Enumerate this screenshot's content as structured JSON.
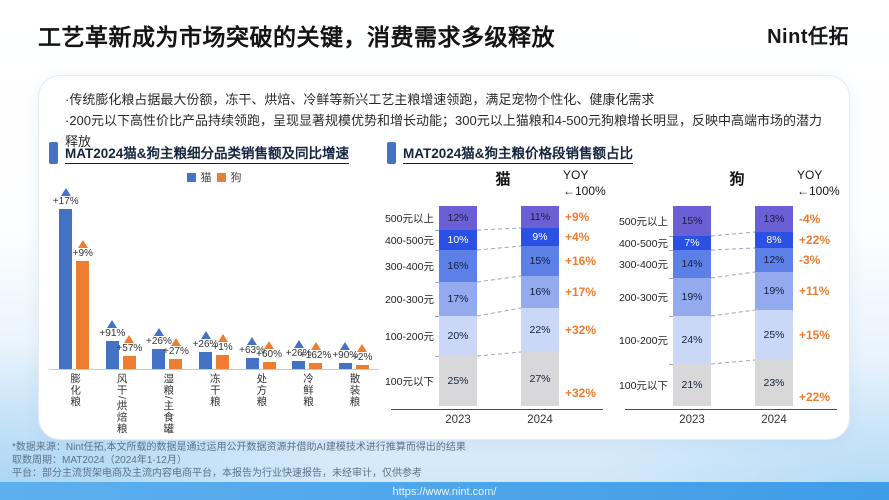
{
  "header": {
    "title": "工艺革新成为市场突破的关键，消费需求多级释放",
    "logo": "Nint任拓"
  },
  "bullets": [
    "·传统膨化粮占据最大份额，冻干、烘焙、冷鲜等新兴工艺主粮增速领跑，满足宠物个性化、健康化需求",
    "·200元以下高性价比产品持续领跑，呈现显著规模优势和增长动能；300元以上猫粮和4-500元狗粮增长明显，反映中高端市场的潜力释放"
  ],
  "chart_data": [
    {
      "type": "bar",
      "title": "MAT2024猫&狗主粮细分品类销售额及同比增速",
      "legend_position": "top",
      "categories": [
        "膨化粮",
        "风干/烘焙粮",
        "湿粮/主食罐",
        "冻干粮",
        "处方粮",
        "冷鲜粮",
        "散装粮"
      ],
      "series": [
        {
          "name": "猫",
          "color": "#4472C4",
          "relative_sales": [
            160,
            28,
            20,
            17,
            11,
            8,
            6
          ],
          "growth": [
            "+17%",
            "+91%",
            "+26%",
            "+26%",
            "+63%",
            "+26%",
            "+90%"
          ]
        },
        {
          "name": "狗",
          "color": "#ED7D31",
          "relative_sales": [
            108,
            13,
            10,
            14,
            7,
            6,
            4
          ],
          "growth": [
            "+9%",
            "+57%",
            "+27%",
            "+1%",
            "+60%",
            "+162%",
            "+2%"
          ]
        }
      ]
    },
    {
      "type": "stacked-bar",
      "title": "MAT2024猫&狗主粮价格段销售额占比",
      "yoy_header": "YOY",
      "yoy_sub": "←100%",
      "years": [
        "2023",
        "2024"
      ],
      "segments": [
        "500元以上",
        "400-500元",
        "300-400元",
        "200-300元",
        "100-200元",
        "100元以下"
      ],
      "segment_colors": [
        "#6B5FD6",
        "#2A50E6",
        "#5C80E8",
        "#94AAEF",
        "#CBD7F7",
        "#D8D8DB"
      ],
      "yoy_color": "#ED7D31",
      "panels": [
        {
          "name": "猫",
          "values_2023": [
            12,
            10,
            16,
            17,
            20,
            25
          ],
          "values_2024": [
            11,
            9,
            15,
            16,
            22,
            27
          ],
          "yoy": [
            "+9%",
            "+4%",
            "+16%",
            "+17%",
            "+32%",
            "+32%"
          ]
        },
        {
          "name": "狗",
          "values_2023": [
            15,
            7,
            14,
            19,
            24,
            21
          ],
          "values_2024": [
            13,
            8,
            12,
            19,
            25,
            23
          ],
          "yoy": [
            "-4%",
            "+22%",
            "-3%",
            "+11%",
            "+15%",
            "+22%"
          ]
        }
      ]
    }
  ],
  "footer": {
    "lines": [
      "*数据来源：Nint任拓,本文所载的数据是通过运用公开数据资源并借助AI建模技术进行推算而得出的结果",
      "取数周期：MAT2024（2024年1-12月）",
      "平台：部分主流货架电商及主流内容电商平台，本报告为行业快速报告，未经审计，仅供参考"
    ],
    "url": "https://www.nint.com/"
  }
}
